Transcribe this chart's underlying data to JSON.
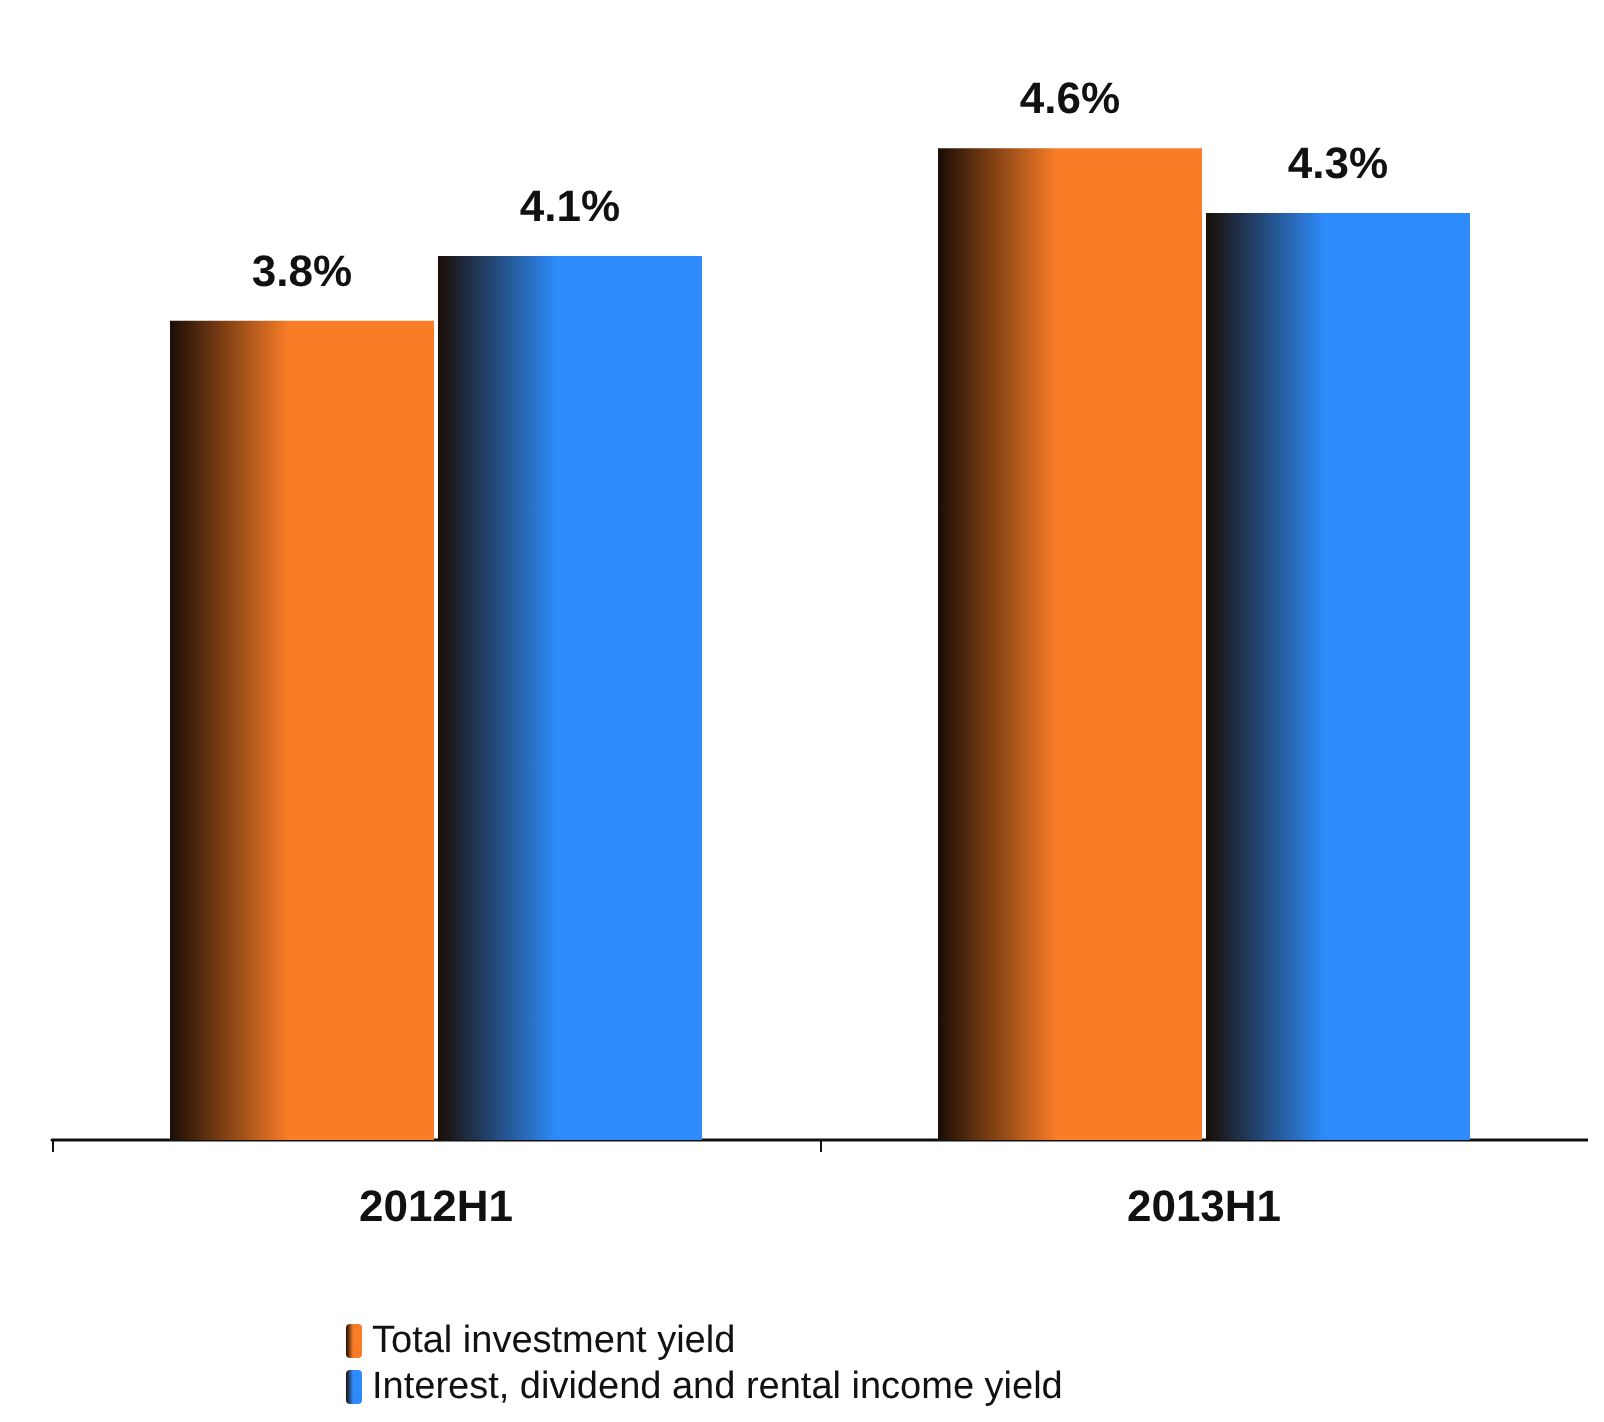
{
  "chart_data": {
    "type": "bar",
    "categories": [
      "2012H1",
      "2013H1"
    ],
    "series": [
      {
        "name": "Total investment yield",
        "color": "#f97d27",
        "values": [
          3.8,
          4.6
        ],
        "value_labels": [
          "3.8%",
          "4.6%"
        ]
      },
      {
        "name": "Interest, dividend and rental income yield",
        "color": "#2e8bfb",
        "values": [
          4.1,
          4.3
        ],
        "value_labels": [
          "4.1%",
          "4.3%"
        ]
      }
    ],
    "legend": "bottom"
  }
}
